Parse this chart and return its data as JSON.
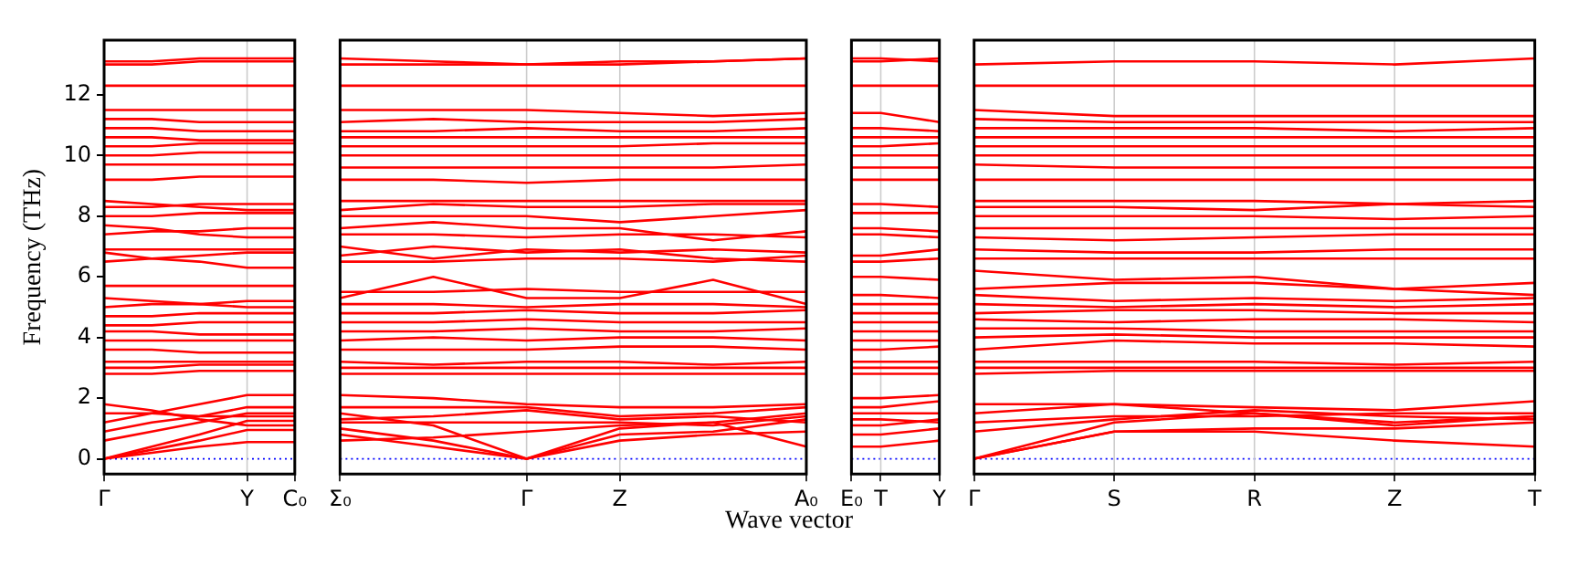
{
  "chart_data": [
    {
      "type": "line",
      "ylabel": "Frequency (THz)",
      "color": "#ff0000",
      "categories": [
        "Γ",
        null,
        null,
        "Y",
        "C₀"
      ],
      "ylim": [
        -0.5,
        13.8
      ],
      "yticks": [
        0,
        2,
        4,
        6,
        8,
        10,
        12
      ],
      "ref_lines": [
        {
          "axis": "y",
          "value": 0,
          "color": "#0000ff",
          "line_style": "dotted"
        },
        {
          "axis": "x",
          "value": "Y",
          "color": "#cccccc"
        }
      ],
      "series": [
        {
          "values": [
            0,
            0.2,
            0.4,
            0.55,
            0.55
          ]
        },
        {
          "values": [
            0,
            0.3,
            0.6,
            0.95,
            0.95
          ]
        },
        {
          "values": [
            0,
            0.4,
            0.8,
            1.25,
            1.25
          ]
        },
        {
          "values": [
            0.6,
            0.9,
            1.2,
            1.5,
            1.5
          ]
        },
        {
          "values": [
            0.9,
            1.2,
            1.4,
            1.7,
            1.7
          ]
        },
        {
          "values": [
            1.2,
            1.5,
            1.8,
            2.1,
            2.1
          ]
        },
        {
          "values": [
            1.5,
            1.5,
            1.4,
            1.4,
            1.4
          ]
        },
        {
          "values": [
            1.8,
            1.6,
            1.3,
            1.1,
            1.1
          ]
        },
        {
          "values": [
            2.8,
            2.8,
            2.9,
            2.9,
            2.9
          ]
        },
        {
          "values": [
            3.0,
            3.0,
            3.1,
            3.1,
            3.1
          ]
        },
        {
          "values": [
            3.2,
            3.2,
            3.2,
            3.2,
            3.2
          ]
        },
        {
          "values": [
            3.6,
            3.6,
            3.5,
            3.5,
            3.5
          ]
        },
        {
          "values": [
            3.9,
            3.9,
            3.9,
            3.9,
            3.9
          ]
        },
        {
          "values": [
            4.2,
            4.2,
            4.1,
            4.1,
            4.1
          ]
        },
        {
          "values": [
            4.4,
            4.4,
            4.5,
            4.5,
            4.5
          ]
        },
        {
          "values": [
            4.7,
            4.7,
            4.8,
            4.8,
            4.8
          ]
        },
        {
          "values": [
            5.0,
            5.1,
            5.1,
            5.2,
            5.2
          ]
        },
        {
          "values": [
            5.3,
            5.2,
            5.1,
            5.0,
            5.0
          ]
        },
        {
          "values": [
            5.7,
            5.7,
            5.7,
            5.7,
            5.7
          ]
        },
        {
          "values": [
            6.5,
            6.6,
            6.7,
            6.8,
            6.8
          ]
        },
        {
          "values": [
            6.8,
            6.6,
            6.5,
            6.3,
            6.3
          ]
        },
        {
          "values": [
            6.9,
            6.9,
            6.9,
            6.9,
            6.9
          ]
        },
        {
          "values": [
            7.4,
            7.5,
            7.5,
            7.6,
            7.6
          ]
        },
        {
          "values": [
            7.7,
            7.6,
            7.4,
            7.3,
            7.3
          ]
        },
        {
          "values": [
            8.0,
            8.0,
            8.1,
            8.1,
            8.1
          ]
        },
        {
          "values": [
            8.3,
            8.3,
            8.4,
            8.4,
            8.4
          ]
        },
        {
          "values": [
            8.5,
            8.4,
            8.3,
            8.2,
            8.2
          ]
        },
        {
          "values": [
            9.2,
            9.2,
            9.3,
            9.3,
            9.3
          ]
        },
        {
          "values": [
            9.7,
            9.7,
            9.7,
            9.7,
            9.7
          ]
        },
        {
          "values": [
            10.0,
            10.0,
            10.1,
            10.1,
            10.1
          ]
        },
        {
          "values": [
            10.3,
            10.3,
            10.4,
            10.4,
            10.4
          ]
        },
        {
          "values": [
            10.6,
            10.6,
            10.5,
            10.5,
            10.5
          ]
        },
        {
          "values": [
            10.9,
            10.9,
            10.8,
            10.8,
            10.8
          ]
        },
        {
          "values": [
            11.2,
            11.2,
            11.1,
            11.1,
            11.1
          ]
        },
        {
          "values": [
            11.5,
            11.5,
            11.5,
            11.5,
            11.5
          ]
        },
        {
          "values": [
            12.3,
            12.3,
            12.3,
            12.3,
            12.3
          ]
        },
        {
          "values": [
            13.0,
            13.0,
            13.1,
            13.1,
            13.1
          ]
        },
        {
          "values": [
            13.1,
            13.1,
            13.2,
            13.2,
            13.2
          ]
        }
      ]
    },
    {
      "type": "line",
      "xlabel": "Wave vector",
      "color": "#ff0000",
      "tick_labels": "x",
      "categories": [
        "Σ₀",
        null,
        "Γ",
        "Z",
        null,
        "A₀"
      ],
      "ylim": [
        -0.5,
        13.8
      ],
      "yticks": [
        0,
        2,
        4,
        6,
        8,
        10,
        12
      ],
      "ref_lines": [
        {
          "axis": "y",
          "value": 0,
          "color": "#0000ff",
          "line_style": "dotted"
        },
        {
          "axis": "x",
          "value": "Γ",
          "color": "#cccccc"
        },
        {
          "axis": "x",
          "value": "Z",
          "color": "#cccccc"
        }
      ],
      "series": [
        {
          "values": [
            0.8,
            0.4,
            0,
            0.6,
            0.8,
            0.9
          ]
        },
        {
          "values": [
            1.0,
            0.6,
            0,
            0.8,
            0.9,
            1.3
          ]
        },
        {
          "values": [
            1.5,
            1.1,
            0,
            1.0,
            1.2,
            1.5
          ]
        },
        {
          "values": [
            0.6,
            0.7,
            0.9,
            1.1,
            1.2,
            0.4
          ]
        },
        {
          "values": [
            1.3,
            1.4,
            1.6,
            1.3,
            1.4,
            1.2
          ]
        },
        {
          "values": [
            1.7,
            1.7,
            1.7,
            1.4,
            1.5,
            1.7
          ]
        },
        {
          "values": [
            2.1,
            2.0,
            1.8,
            1.7,
            1.7,
            1.8
          ]
        },
        {
          "values": [
            1.2,
            1.2,
            1.2,
            1.2,
            1.1,
            1.4
          ]
        },
        {
          "values": [
            2.8,
            2.8,
            2.8,
            2.8,
            2.8,
            2.8
          ]
        },
        {
          "values": [
            3.0,
            3.0,
            3.0,
            3.0,
            3.0,
            3.0
          ]
        },
        {
          "values": [
            3.2,
            3.1,
            3.2,
            3.2,
            3.1,
            3.2
          ]
        },
        {
          "values": [
            3.6,
            3.6,
            3.6,
            3.7,
            3.7,
            3.6
          ]
        },
        {
          "values": [
            3.9,
            4.0,
            3.9,
            4.0,
            4.0,
            3.9
          ]
        },
        {
          "values": [
            4.2,
            4.2,
            4.3,
            4.2,
            4.2,
            4.3
          ]
        },
        {
          "values": [
            4.5,
            4.5,
            4.6,
            4.5,
            4.5,
            4.5
          ]
        },
        {
          "values": [
            4.8,
            4.8,
            4.9,
            4.8,
            4.8,
            4.9
          ]
        },
        {
          "values": [
            5.1,
            5.1,
            5.0,
            5.1,
            5.1,
            5.0
          ]
        },
        {
          "values": [
            5.3,
            6.0,
            5.3,
            5.3,
            5.9,
            5.1
          ]
        },
        {
          "values": [
            5.5,
            5.5,
            5.6,
            5.5,
            5.5,
            5.5
          ]
        },
        {
          "values": [
            6.5,
            6.5,
            6.6,
            6.6,
            6.5,
            6.7
          ]
        },
        {
          "values": [
            7.0,
            6.6,
            6.9,
            6.8,
            6.9,
            6.8
          ]
        },
        {
          "values": [
            6.7,
            7.0,
            6.8,
            6.9,
            6.6,
            6.5
          ]
        },
        {
          "values": [
            7.4,
            7.4,
            7.3,
            7.4,
            7.4,
            7.3
          ]
        },
        {
          "values": [
            7.6,
            7.8,
            7.6,
            7.6,
            7.2,
            7.5
          ]
        },
        {
          "values": [
            8.0,
            8.0,
            8.0,
            7.8,
            8.0,
            8.2
          ]
        },
        {
          "values": [
            8.2,
            8.4,
            8.3,
            8.3,
            8.4,
            8.4
          ]
        },
        {
          "values": [
            8.5,
            8.5,
            8.5,
            8.5,
            8.5,
            8.5
          ]
        },
        {
          "values": [
            9.2,
            9.2,
            9.1,
            9.2,
            9.2,
            9.2
          ]
        },
        {
          "values": [
            9.6,
            9.6,
            9.6,
            9.6,
            9.6,
            9.7
          ]
        },
        {
          "values": [
            10.0,
            10.0,
            10.0,
            10.0,
            10.0,
            10.0
          ]
        },
        {
          "values": [
            10.3,
            10.3,
            10.3,
            10.3,
            10.4,
            10.4
          ]
        },
        {
          "values": [
            10.6,
            10.6,
            10.6,
            10.6,
            10.6,
            10.6
          ]
        },
        {
          "values": [
            10.8,
            10.8,
            10.9,
            10.8,
            10.8,
            10.9
          ]
        },
        {
          "values": [
            11.1,
            11.2,
            11.1,
            11.1,
            11.1,
            11.2
          ]
        },
        {
          "values": [
            11.5,
            11.5,
            11.5,
            11.4,
            11.3,
            11.4
          ]
        },
        {
          "values": [
            12.3,
            12.3,
            12.3,
            12.3,
            12.3,
            12.3
          ]
        },
        {
          "values": [
            13.0,
            13.0,
            13.0,
            13.1,
            13.1,
            13.2
          ]
        },
        {
          "values": [
            13.2,
            13.1,
            13.0,
            13.0,
            13.1,
            13.2
          ]
        }
      ]
    },
    {
      "type": "line",
      "color": "#ff0000",
      "tick_labels": "x",
      "categories": [
        "E₀",
        "T",
        null,
        "Y"
      ],
      "ylim": [
        -0.5,
        13.8
      ],
      "yticks": [
        0,
        2,
        4,
        6,
        8,
        10,
        12
      ],
      "ref_lines": [
        {
          "axis": "y",
          "value": 0,
          "color": "#0000ff",
          "line_style": "dotted"
        },
        {
          "axis": "x",
          "value": "T",
          "color": "#cccccc"
        }
      ],
      "series": [
        {
          "values": [
            0.4,
            0.4,
            0.5,
            0.6
          ]
        },
        {
          "values": [
            0.8,
            0.8,
            0.9,
            1.0
          ]
        },
        {
          "values": [
            1.1,
            1.1,
            1.2,
            1.3
          ]
        },
        {
          "values": [
            1.3,
            1.3,
            1.25,
            1.2
          ]
        },
        {
          "values": [
            1.5,
            1.5,
            1.5,
            1.5
          ]
        },
        {
          "values": [
            1.7,
            1.7,
            1.8,
            1.9
          ]
        },
        {
          "values": [
            2.0,
            2.0,
            2.05,
            2.1
          ]
        },
        {
          "values": [
            2.8,
            2.8,
            2.8,
            2.8
          ]
        },
        {
          "values": [
            3.0,
            3.0,
            3.0,
            3.0
          ]
        },
        {
          "values": [
            3.2,
            3.2,
            3.2,
            3.2
          ]
        },
        {
          "values": [
            3.6,
            3.6,
            3.65,
            3.7
          ]
        },
        {
          "values": [
            3.9,
            3.9,
            3.9,
            3.9
          ]
        },
        {
          "values": [
            4.2,
            4.2,
            4.2,
            4.2
          ]
        },
        {
          "values": [
            4.5,
            4.5,
            4.5,
            4.5
          ]
        },
        {
          "values": [
            4.8,
            4.8,
            4.8,
            4.8
          ]
        },
        {
          "values": [
            5.1,
            5.1,
            5.1,
            5.1
          ]
        },
        {
          "values": [
            5.4,
            5.4,
            5.35,
            5.3
          ]
        },
        {
          "values": [
            6.0,
            6.0,
            5.95,
            5.9
          ]
        },
        {
          "values": [
            6.5,
            6.5,
            6.55,
            6.6
          ]
        },
        {
          "values": [
            6.7,
            6.7,
            6.8,
            6.9
          ]
        },
        {
          "values": [
            7.4,
            7.4,
            7.35,
            7.3
          ]
        },
        {
          "values": [
            7.6,
            7.6,
            7.55,
            7.5
          ]
        },
        {
          "values": [
            8.1,
            8.1,
            8.1,
            8.1
          ]
        },
        {
          "values": [
            8.4,
            8.4,
            8.35,
            8.3
          ]
        },
        {
          "values": [
            9.2,
            9.2,
            9.2,
            9.2
          ]
        },
        {
          "values": [
            9.6,
            9.6,
            9.6,
            9.6
          ]
        },
        {
          "values": [
            10.0,
            10.0,
            10.0,
            10.0
          ]
        },
        {
          "values": [
            10.3,
            10.3,
            10.35,
            10.4
          ]
        },
        {
          "values": [
            10.6,
            10.6,
            10.6,
            10.6
          ]
        },
        {
          "values": [
            10.9,
            10.9,
            10.85,
            10.8
          ]
        },
        {
          "values": [
            11.4,
            11.4,
            11.25,
            11.1
          ]
        },
        {
          "values": [
            12.3,
            12.3,
            12.3,
            12.3
          ]
        },
        {
          "values": [
            13.1,
            13.1,
            13.15,
            13.2
          ]
        },
        {
          "values": [
            13.2,
            13.2,
            13.15,
            13.1
          ]
        }
      ]
    },
    {
      "type": "line",
      "color": "#ff0000",
      "tick_labels": "x",
      "categories": [
        "Γ",
        "S",
        "R",
        "Z",
        "T"
      ],
      "ylim": [
        -0.5,
        13.8
      ],
      "yticks": [
        0,
        2,
        4,
        6,
        8,
        10,
        12
      ],
      "ref_lines": [
        {
          "axis": "y",
          "value": 0,
          "color": "#0000ff",
          "line_style": "dotted"
        },
        {
          "axis": "x",
          "value": "S",
          "color": "#cccccc"
        },
        {
          "axis": "x",
          "value": "R",
          "color": "#cccccc"
        },
        {
          "axis": "x",
          "value": "Z",
          "color": "#cccccc"
        }
      ],
      "series": [
        {
          "values": [
            0,
            0.9,
            1.0,
            1.0,
            1.2
          ]
        },
        {
          "values": [
            0,
            0.9,
            0.9,
            0.6,
            0.4
          ]
        },
        {
          "values": [
            0,
            1.2,
            1.5,
            1.1,
            1.4
          ]
        },
        {
          "values": [
            0.9,
            1.3,
            1.6,
            1.4,
            1.3
          ]
        },
        {
          "values": [
            1.2,
            1.4,
            1.4,
            1.5,
            1.5
          ]
        },
        {
          "values": [
            1.5,
            1.8,
            1.5,
            1.2,
            1.4
          ]
        },
        {
          "values": [
            1.8,
            1.8,
            1.7,
            1.6,
            1.9
          ]
        },
        {
          "values": [
            2.8,
            2.9,
            2.9,
            2.9,
            2.9
          ]
        },
        {
          "values": [
            3.0,
            3.0,
            3.0,
            3.0,
            3.0
          ]
        },
        {
          "values": [
            3.2,
            3.2,
            3.2,
            3.1,
            3.2
          ]
        },
        {
          "values": [
            3.6,
            3.9,
            3.8,
            3.8,
            3.7
          ]
        },
        {
          "values": [
            4.0,
            4.1,
            4.0,
            4.0,
            4.0
          ]
        },
        {
          "values": [
            4.3,
            4.3,
            4.2,
            4.2,
            4.2
          ]
        },
        {
          "values": [
            4.6,
            4.5,
            4.6,
            4.6,
            4.5
          ]
        },
        {
          "values": [
            4.8,
            4.9,
            4.9,
            4.8,
            4.8
          ]
        },
        {
          "values": [
            5.1,
            5.0,
            5.1,
            5.0,
            5.1
          ]
        },
        {
          "values": [
            5.4,
            5.2,
            5.3,
            5.2,
            5.3
          ]
        },
        {
          "values": [
            5.6,
            5.8,
            5.8,
            5.6,
            5.8
          ]
        },
        {
          "values": [
            6.2,
            5.9,
            6.0,
            5.6,
            5.4
          ]
        },
        {
          "values": [
            6.6,
            6.6,
            6.6,
            6.6,
            6.6
          ]
        },
        {
          "values": [
            6.9,
            6.8,
            6.8,
            6.9,
            6.9
          ]
        },
        {
          "values": [
            7.3,
            7.2,
            7.3,
            7.4,
            7.4
          ]
        },
        {
          "values": [
            7.6,
            7.6,
            7.6,
            7.6,
            7.6
          ]
        },
        {
          "values": [
            8.0,
            8.0,
            8.0,
            7.9,
            8.0
          ]
        },
        {
          "values": [
            8.3,
            8.3,
            8.2,
            8.4,
            8.3
          ]
        },
        {
          "values": [
            8.5,
            8.5,
            8.5,
            8.4,
            8.5
          ]
        },
        {
          "values": [
            9.2,
            9.2,
            9.2,
            9.2,
            9.2
          ]
        },
        {
          "values": [
            9.7,
            9.6,
            9.6,
            9.6,
            9.6
          ]
        },
        {
          "values": [
            10.0,
            10.0,
            10.0,
            10.0,
            10.0
          ]
        },
        {
          "values": [
            10.3,
            10.3,
            10.3,
            10.3,
            10.3
          ]
        },
        {
          "values": [
            10.6,
            10.6,
            10.6,
            10.6,
            10.6
          ]
        },
        {
          "values": [
            10.9,
            10.9,
            10.9,
            10.8,
            10.9
          ]
        },
        {
          "values": [
            11.2,
            11.1,
            11.1,
            11.1,
            11.1
          ]
        },
        {
          "values": [
            11.5,
            11.3,
            11.3,
            11.3,
            11.3
          ]
        },
        {
          "values": [
            12.3,
            12.3,
            12.3,
            12.3,
            12.3
          ]
        },
        {
          "values": [
            13.0,
            13.1,
            13.1,
            13.0,
            13.2
          ]
        }
      ]
    }
  ]
}
